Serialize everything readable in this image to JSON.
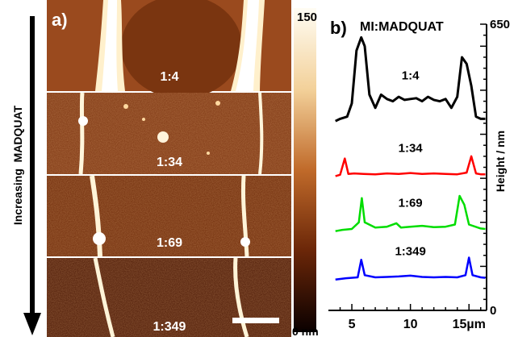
{
  "panel_a": {
    "label": "a)",
    "arrow_label": "Increasing  MADQUAT",
    "strips": [
      {
        "ratio": "1:4"
      },
      {
        "ratio": "1:34"
      },
      {
        "ratio": "1:69"
      },
      {
        "ratio": "1:349"
      }
    ],
    "colorbar": {
      "max_label": "150",
      "min_label": "0 nm"
    }
  },
  "panel_b": {
    "label": "b)",
    "title": "MI:MADQUAT"
  },
  "chart_data": {
    "type": "line",
    "title": "MI:MADQUAT",
    "xlabel": "",
    "ylabel": "Height / nm",
    "xlim": [
      3,
      16.5
    ],
    "ylim": [
      0,
      650
    ],
    "x_ticks": [
      5,
      10,
      15
    ],
    "x_tick_labels": [
      "5",
      "10",
      "15µm"
    ],
    "y_ticks": [
      0,
      650
    ],
    "y_tick_labels": [
      "0",
      "650"
    ],
    "grid": false,
    "series": [
      {
        "name": "1:4",
        "color": "#000000",
        "offset": 430,
        "points": [
          [
            3.6,
            0
          ],
          [
            4.0,
            5
          ],
          [
            4.6,
            10
          ],
          [
            5.0,
            40
          ],
          [
            5.4,
            160
          ],
          [
            5.8,
            190
          ],
          [
            6.1,
            170
          ],
          [
            6.5,
            60
          ],
          [
            7.0,
            30
          ],
          [
            7.5,
            60
          ],
          [
            8.0,
            50
          ],
          [
            8.5,
            45
          ],
          [
            9.0,
            55
          ],
          [
            9.5,
            48
          ],
          [
            10.0,
            50
          ],
          [
            10.5,
            52
          ],
          [
            11.0,
            45
          ],
          [
            11.5,
            55
          ],
          [
            12.0,
            48
          ],
          [
            12.5,
            45
          ],
          [
            13.0,
            50
          ],
          [
            13.5,
            30
          ],
          [
            14.0,
            55
          ],
          [
            14.4,
            145
          ],
          [
            14.8,
            130
          ],
          [
            15.2,
            80
          ],
          [
            15.6,
            10
          ],
          [
            16.0,
            5
          ],
          [
            16.4,
            5
          ]
        ]
      },
      {
        "name": "1:34",
        "color": "#ff0000",
        "offset": 305,
        "points": [
          [
            3.6,
            0
          ],
          [
            4.0,
            3
          ],
          [
            4.4,
            40
          ],
          [
            4.7,
            5
          ],
          [
            5.2,
            6
          ],
          [
            6.0,
            5
          ],
          [
            7.0,
            4
          ],
          [
            8.0,
            6
          ],
          [
            9.0,
            5
          ],
          [
            10.0,
            7
          ],
          [
            11.0,
            5
          ],
          [
            12.0,
            6
          ],
          [
            13.0,
            5
          ],
          [
            14.0,
            4
          ],
          [
            14.8,
            8
          ],
          [
            15.2,
            45
          ],
          [
            15.6,
            6
          ],
          [
            16.0,
            4
          ],
          [
            16.4,
            4
          ]
        ]
      },
      {
        "name": "1:69",
        "color": "#00dd00",
        "offset": 180,
        "points": [
          [
            3.6,
            0
          ],
          [
            4.2,
            3
          ],
          [
            5.0,
            5
          ],
          [
            5.6,
            20
          ],
          [
            5.85,
            75
          ],
          [
            6.1,
            20
          ],
          [
            7.0,
            8
          ],
          [
            8.0,
            10
          ],
          [
            8.8,
            18
          ],
          [
            9.2,
            8
          ],
          [
            10.0,
            10
          ],
          [
            11.0,
            12
          ],
          [
            12.0,
            9
          ],
          [
            13.0,
            10
          ],
          [
            13.8,
            15
          ],
          [
            14.2,
            80
          ],
          [
            14.6,
            60
          ],
          [
            15.0,
            15
          ],
          [
            16.0,
            6
          ],
          [
            16.4,
            5
          ]
        ]
      },
      {
        "name": "1:349",
        "color": "#0000ff",
        "offset": 70,
        "points": [
          [
            3.6,
            0
          ],
          [
            4.5,
            3
          ],
          [
            5.5,
            5
          ],
          [
            5.8,
            45
          ],
          [
            6.1,
            10
          ],
          [
            7.0,
            5
          ],
          [
            8.0,
            6
          ],
          [
            9.0,
            7
          ],
          [
            10.0,
            9
          ],
          [
            11.0,
            6
          ],
          [
            12.0,
            5
          ],
          [
            13.0,
            6
          ],
          [
            14.0,
            5
          ],
          [
            14.7,
            10
          ],
          [
            15.0,
            50
          ],
          [
            15.3,
            10
          ],
          [
            16.0,
            5
          ],
          [
            16.4,
            4
          ]
        ]
      }
    ]
  }
}
